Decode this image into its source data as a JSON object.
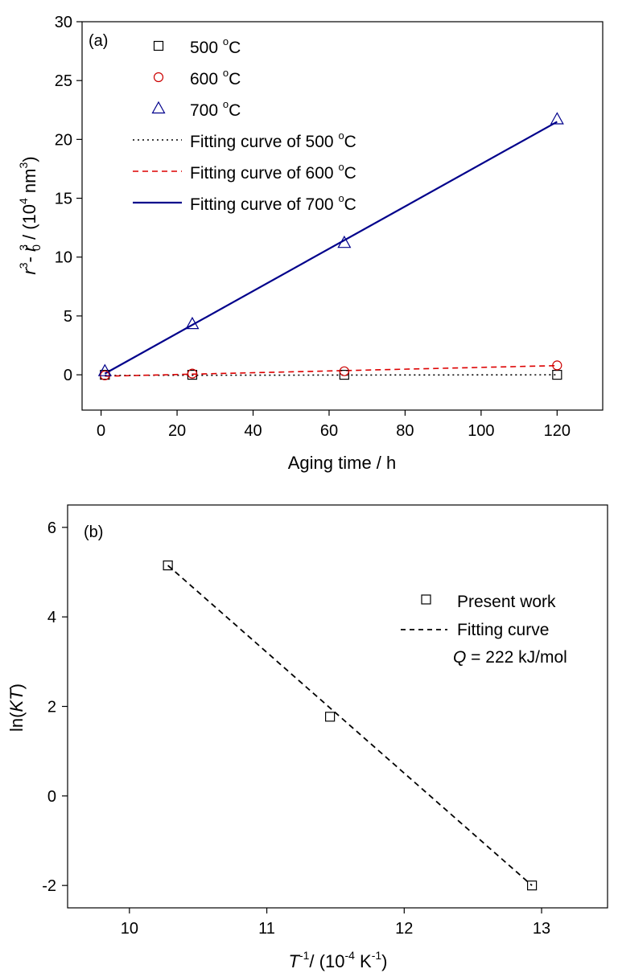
{
  "chart_data": [
    {
      "type": "scatter",
      "panel_label": "(a)",
      "xlabel": "Aging time / h",
      "ylabel": {
        "r": "r",
        "exp3": "3",
        "minus": "- ",
        "r0": "r",
        "sub0": "0",
        "unit_prefix": " / (10",
        "exp4": "4",
        "unit_suffix": " nm",
        "closing": ")"
      },
      "xlim": [
        -5,
        132
      ],
      "ylim": [
        -3,
        30
      ],
      "xticks": [
        0,
        20,
        40,
        60,
        80,
        100,
        120
      ],
      "yticks": [
        0,
        5,
        10,
        15,
        20,
        25,
        30
      ],
      "legend_position": "top-left",
      "series": [
        {
          "name": "500 °C",
          "marker": "square",
          "color": "#000000",
          "x": [
            1,
            24,
            64,
            120
          ],
          "y": [
            0.0,
            0.0,
            0.0,
            0.0
          ]
        },
        {
          "name": "600 °C",
          "marker": "circle",
          "color": "#cc0000",
          "x": [
            1,
            24,
            64,
            120
          ],
          "y": [
            -0.05,
            0.1,
            0.3,
            0.8
          ]
        },
        {
          "name": "700 °C",
          "marker": "triangle",
          "color": "#00008b",
          "x": [
            1,
            24,
            64,
            120
          ],
          "y": [
            0.3,
            4.3,
            11.2,
            21.7
          ]
        }
      ],
      "fits": [
        {
          "name": "Fitting curve of 500 °C",
          "style": "dotted",
          "color": "#000000",
          "x": [
            1,
            120
          ],
          "y": [
            -0.05,
            0.0
          ]
        },
        {
          "name": "Fitting curve of 600 °C",
          "style": "dashed",
          "color": "#dd0000",
          "x": [
            1,
            120
          ],
          "y": [
            -0.12,
            0.78
          ]
        },
        {
          "name": "Fitting curve of 700 °C",
          "style": "solid",
          "color": "#00008b",
          "x": [
            1,
            120
          ],
          "y": [
            0.1,
            21.5
          ]
        }
      ],
      "legend": [
        {
          "series": 0,
          "label": "500 ",
          "sup": "o",
          "unit": "C"
        },
        {
          "series": 1,
          "label": "600 ",
          "sup": "o",
          "unit": "C"
        },
        {
          "series": 2,
          "label": "700 ",
          "sup": "o",
          "unit": "C"
        },
        {
          "fit": 0,
          "label": "Fitting curve of 500 ",
          "sup": "o",
          "unit": "C"
        },
        {
          "fit": 1,
          "label": "Fitting curve of 600 ",
          "sup": "o",
          "unit": "C"
        },
        {
          "fit": 2,
          "label": "Fitting curve of 700 ",
          "sup": "o",
          "unit": "C"
        }
      ]
    },
    {
      "type": "scatter",
      "panel_label": "(b)",
      "xlabel": {
        "T": "T",
        "exp": "-1",
        "rest": "/ (10",
        "exp2": "-4",
        "unit": " K",
        "exp3": "-1",
        "closing": ")"
      },
      "ylabel": {
        "prefix": "ln(",
        "var": "KT",
        "suffix": ")"
      },
      "xlim": [
        9.55,
        13.48
      ],
      "ylim": [
        -2.5,
        6.5
      ],
      "xticks": [
        10,
        11,
        12,
        13
      ],
      "yticks": [
        -2,
        0,
        2,
        4,
        6
      ],
      "legend_position": "right",
      "series": [
        {
          "name": "Present work",
          "marker": "square",
          "color": "#000000",
          "x": [
            10.28,
            11.46,
            12.93
          ],
          "y": [
            5.15,
            1.77,
            -2.0
          ]
        }
      ],
      "fits": [
        {
          "name": "Fitting curve",
          "style": "dashed",
          "color": "#000000",
          "x": [
            10.28,
            12.93
          ],
          "y": [
            5.15,
            -2.0
          ]
        }
      ],
      "annotation": {
        "var": "Q",
        "text": " = 222 kJ/mol"
      }
    }
  ]
}
